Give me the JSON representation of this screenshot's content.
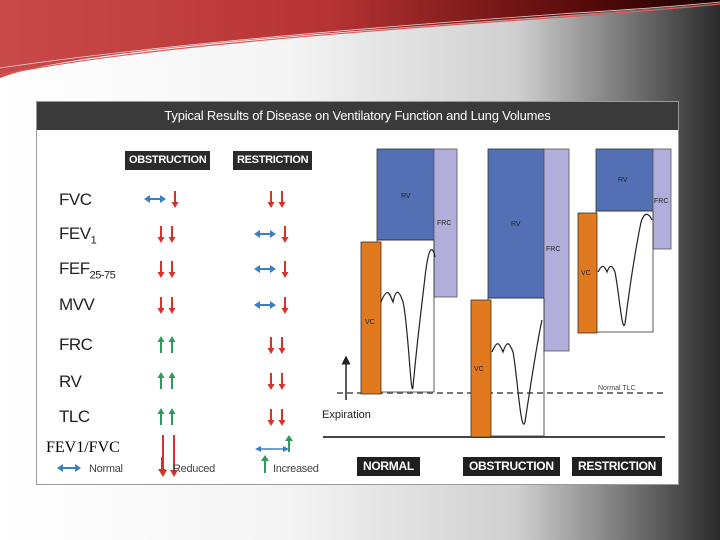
{
  "figure": {
    "title": "Typical Results of Disease on Ventilatory Function and Lung Volumes",
    "columns": {
      "obstruction": "OBSTRUCTION",
      "restriction": "RESTRICTION"
    },
    "parameters": [
      {
        "name": "FVC",
        "sub": "",
        "obstruction": "normal-reduced",
        "restriction": "reduced-reduced"
      },
      {
        "name": "FEV",
        "sub": "1",
        "obstruction": "reduced-reduced",
        "restriction": "normal-reduced"
      },
      {
        "name": "FEF",
        "sub": "25-75",
        "obstruction": "reduced-reduced",
        "restriction": "normal-reduced"
      },
      {
        "name": "MVV",
        "sub": "",
        "obstruction": "reduced-reduced",
        "restriction": "normal-reduced"
      },
      {
        "name": "FRC",
        "sub": "",
        "obstruction": "increased-increased",
        "restriction": "reduced-reduced"
      },
      {
        "name": "RV",
        "sub": "",
        "obstruction": "increased-increased",
        "restriction": "reduced-reduced"
      },
      {
        "name": "TLC",
        "sub": "",
        "obstruction": "increased-increased",
        "restriction": "reduced-reduced"
      }
    ],
    "overlay_label": "FEV1/FVC",
    "legend": {
      "normal": "Normal",
      "reduced": "Reduced",
      "increased": "Increased"
    },
    "diagram": {
      "rv": "RV",
      "frc": "FRC",
      "vc": "VC",
      "normal_tlc": "Normal TLC",
      "expiration": "Expiration",
      "panels": [
        "NORMAL",
        "OBSTRUCTION",
        "RESTRICTION"
      ]
    },
    "colors": {
      "rv": "#5470b4",
      "frc": "#b1aedb",
      "vc": "#e17a1e",
      "normal_arrow": "#3a7fc4",
      "reduced_arrow": "#d8322b",
      "increased_arrow": "#2f9a5c"
    }
  }
}
